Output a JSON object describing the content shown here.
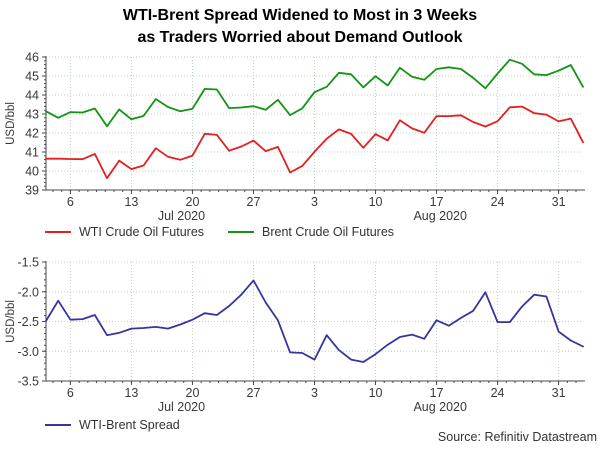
{
  "title": {
    "line1": "WTI-Brent Spread Widened to Most in 3 Weeks",
    "line2": "as Traders Worried about Demand Outlook"
  },
  "source": "Source: Refinitiv Datastream",
  "colors": {
    "wti": "#e22020",
    "brent": "#149414",
    "spread": "#3535a0",
    "grid": "#bdd5bd",
    "axis": "#4a4a4a",
    "text": "#3a3a3a"
  },
  "legend_top": {
    "item1": "WTI Crude Oil Futures",
    "item2": "Brent Crude Oil Futures"
  },
  "legend_bottom": {
    "item1": "WTI-Brent Spread"
  },
  "chart_data": [
    {
      "type": "line",
      "name": "price-chart",
      "ylabel": "USD/bbl",
      "ylim": [
        39,
        46
      ],
      "yticks": [
        39,
        40,
        41,
        42,
        43,
        44,
        45,
        46
      ],
      "ytick_labels": [
        "39",
        "40",
        "41",
        "42",
        "43",
        "44",
        "45",
        "46"
      ],
      "ytick_step": 1,
      "grid": true,
      "legend_position": "bottom",
      "x": [
        "Jul 2",
        "Jul 3",
        "Jul 6",
        "Jul 7",
        "Jul 8",
        "Jul 9",
        "Jul 10",
        "Jul 13",
        "Jul 14",
        "Jul 15",
        "Jul 16",
        "Jul 17",
        "Jul 20",
        "Jul 21",
        "Jul 22",
        "Jul 23",
        "Jul 24",
        "Jul 27",
        "Jul 28",
        "Jul 29",
        "Jul 30",
        "Jul 31",
        "Aug 3",
        "Aug 4",
        "Aug 5",
        "Aug 6",
        "Aug 7",
        "Aug 10",
        "Aug 11",
        "Aug 12",
        "Aug 13",
        "Aug 14",
        "Aug 17",
        "Aug 18",
        "Aug 19",
        "Aug 20",
        "Aug 21",
        "Aug 24",
        "Aug 25",
        "Aug 26",
        "Aug 27",
        "Aug 28",
        "Aug 31",
        "Sep 1",
        "Sep 2"
      ],
      "xtick_indices": [
        2,
        7,
        12,
        17,
        22,
        27,
        32,
        37,
        42
      ],
      "xtick_labels": [
        "6",
        "13",
        "20",
        "27",
        "3",
        "10",
        "17",
        "24",
        "31"
      ],
      "month_labels": [
        {
          "label": "Jul 2020",
          "index": 11.1
        },
        {
          "label": "Aug 2020",
          "index": 32.3
        }
      ],
      "series": [
        {
          "name": "WTI Crude Oil Futures",
          "color": "#e22020",
          "values": [
            40.65,
            40.65,
            40.63,
            40.62,
            40.9,
            39.62,
            40.55,
            40.1,
            40.29,
            41.2,
            40.75,
            40.59,
            40.81,
            41.96,
            41.9,
            41.07,
            41.29,
            41.6,
            41.04,
            41.27,
            39.92,
            40.27,
            41.01,
            41.7,
            42.19,
            41.95,
            41.22,
            41.94,
            41.61,
            42.67,
            42.24,
            42.01,
            42.89,
            42.89,
            42.93,
            42.58,
            42.34,
            42.62,
            43.35,
            43.39,
            43.04,
            42.97,
            42.61,
            42.76,
            41.51
          ]
        },
        {
          "name": "Brent Crude Oil Futures",
          "color": "#149414",
          "values": [
            43.14,
            42.8,
            43.1,
            43.08,
            43.29,
            42.35,
            43.24,
            42.72,
            42.9,
            43.79,
            43.37,
            43.14,
            43.28,
            44.32,
            44.29,
            43.31,
            43.34,
            43.41,
            43.22,
            43.75,
            42.94,
            43.3,
            44.15,
            44.43,
            45.17,
            45.09,
            44.4,
            44.99,
            44.5,
            45.43,
            44.96,
            44.8,
            45.37,
            45.46,
            45.37,
            44.9,
            44.35,
            45.13,
            45.86,
            45.64,
            45.09,
            45.05,
            45.28,
            45.58,
            44.43
          ]
        }
      ]
    },
    {
      "type": "line",
      "name": "spread-chart",
      "ylabel": "USD/bbl",
      "ylim": [
        -3.5,
        -1.5
      ],
      "yticks": [
        -3.5,
        -3.0,
        -2.5,
        -2.0,
        -1.5
      ],
      "ytick_labels": [
        "-3.5",
        "-3.0",
        "-2.5",
        "-2.0",
        "-1.5"
      ],
      "ytick_step": 0.5,
      "grid": true,
      "legend_position": "bottom",
      "x": [
        "Jul 2",
        "Jul 3",
        "Jul 6",
        "Jul 7",
        "Jul 8",
        "Jul 9",
        "Jul 10",
        "Jul 13",
        "Jul 14",
        "Jul 15",
        "Jul 16",
        "Jul 17",
        "Jul 20",
        "Jul 21",
        "Jul 22",
        "Jul 23",
        "Jul 24",
        "Jul 27",
        "Jul 28",
        "Jul 29",
        "Jul 30",
        "Jul 31",
        "Aug 3",
        "Aug 4",
        "Aug 5",
        "Aug 6",
        "Aug 7",
        "Aug 10",
        "Aug 11",
        "Aug 12",
        "Aug 13",
        "Aug 14",
        "Aug 17",
        "Aug 18",
        "Aug 19",
        "Aug 20",
        "Aug 21",
        "Aug 24",
        "Aug 25",
        "Aug 26",
        "Aug 27",
        "Aug 28",
        "Aug 31",
        "Sep 1",
        "Sep 2"
      ],
      "xtick_indices": [
        2,
        7,
        12,
        17,
        22,
        27,
        32,
        37,
        42
      ],
      "xtick_labels": [
        "6",
        "13",
        "20",
        "27",
        "3",
        "10",
        "17",
        "24",
        "31"
      ],
      "month_labels": [
        {
          "label": "Jul 2020",
          "index": 11.1
        },
        {
          "label": "Aug 2020",
          "index": 32.3
        }
      ],
      "series": [
        {
          "name": "WTI-Brent Spread",
          "color": "#3535a0",
          "values": [
            -2.49,
            -2.15,
            -2.47,
            -2.46,
            -2.39,
            -2.73,
            -2.69,
            -2.62,
            -2.61,
            -2.59,
            -2.62,
            -2.55,
            -2.47,
            -2.36,
            -2.39,
            -2.24,
            -2.05,
            -1.81,
            -2.18,
            -2.48,
            -3.02,
            -3.03,
            -3.14,
            -2.73,
            -2.98,
            -3.14,
            -3.18,
            -3.05,
            -2.89,
            -2.76,
            -2.72,
            -2.79,
            -2.48,
            -2.57,
            -2.44,
            -2.32,
            -2.01,
            -2.51,
            -2.51,
            -2.25,
            -2.05,
            -2.08,
            -2.67,
            -2.82,
            -2.92
          ]
        }
      ]
    }
  ]
}
